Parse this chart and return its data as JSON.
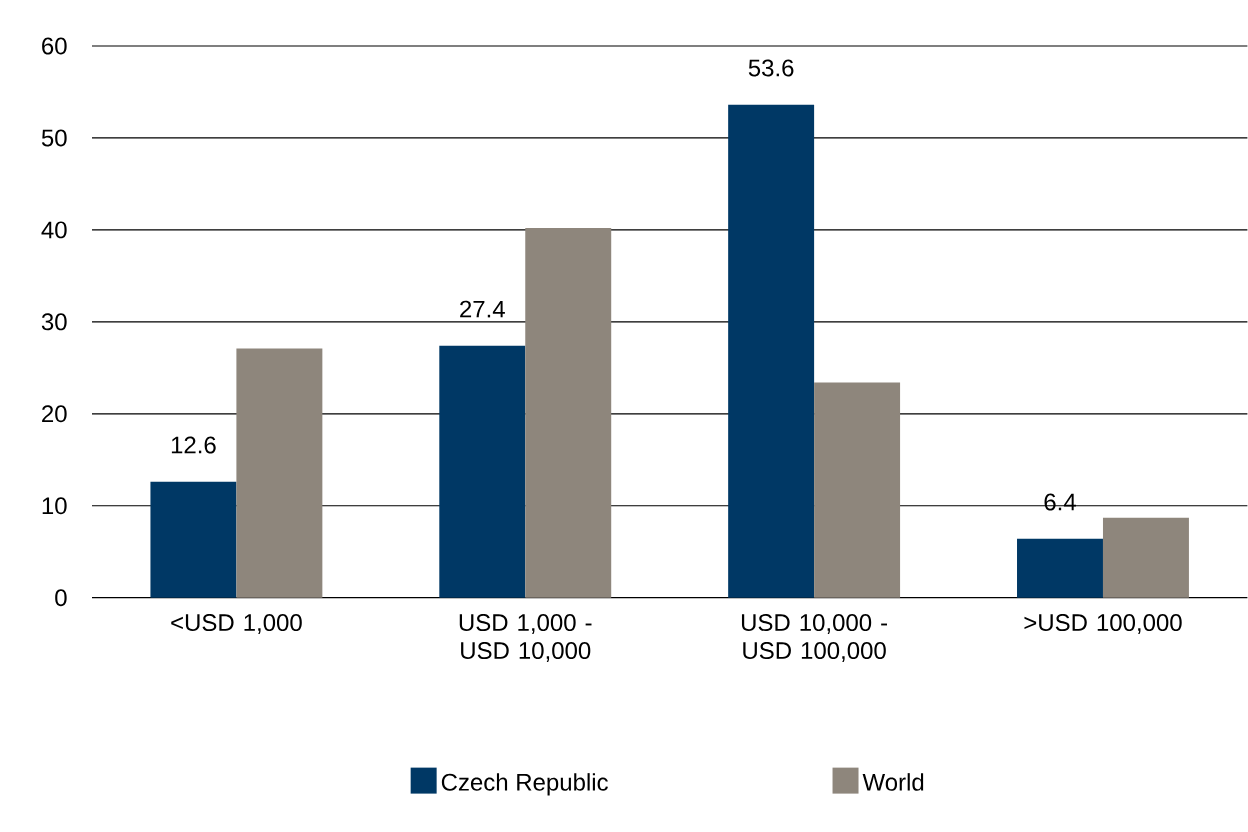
{
  "chart_data": {
    "type": "bar",
    "categories": [
      "<USD 1,000",
      "USD 1,000 - USD 10,000",
      "USD 10,000 - USD 100,000",
      ">USD 100,000"
    ],
    "series": [
      {
        "name": "Czech Republic",
        "color": "#003865",
        "values": [
          12.6,
          27.4,
          53.6,
          6.4
        ],
        "value_labels": [
          "12.6",
          "27.4",
          "53.6",
          "6.4"
        ]
      },
      {
        "name": "World",
        "color": "#8e867c",
        "values": [
          27.1,
          40.2,
          23.4,
          8.7
        ]
      }
    ],
    "ylim": [
      0,
      60
    ],
    "yticks": [
      0,
      10,
      20,
      30,
      40,
      50,
      60
    ],
    "grid": "y",
    "legend": "bottom"
  }
}
